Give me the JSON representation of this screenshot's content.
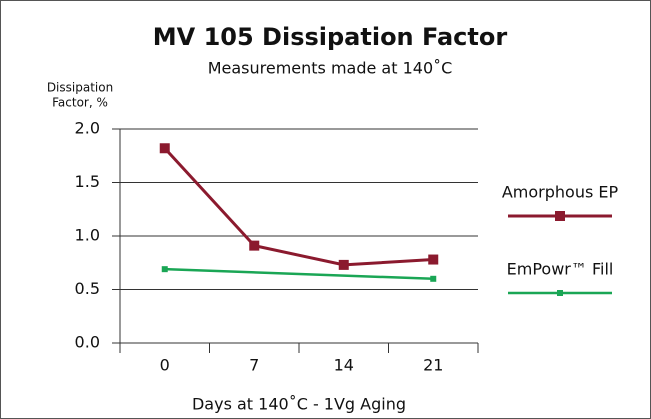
{
  "chart_data": {
    "type": "line",
    "title": "MV 105 Dissipation Factor",
    "subtitle": "Measurements made at 140˚C",
    "y_label": [
      "Dissipation",
      "Factor, %"
    ],
    "x_label": "Days at 140˚C - 1Vg Aging",
    "xlim": [
      -3.5,
      24.5
    ],
    "xticks": [
      0,
      7,
      14,
      21
    ],
    "ylim": [
      0,
      2
    ],
    "yticks": [
      {
        "value": 0,
        "label": "0.0"
      },
      0.5,
      {
        "value": 1,
        "label": "1.0"
      },
      1.5,
      {
        "value": 2,
        "label": "2.0"
      }
    ],
    "grid": true,
    "legend": "right",
    "series": [
      {
        "name": "Amorphous EP",
        "color": "#8b1a2e",
        "x": [
          0,
          7,
          14,
          21
        ],
        "values": [
          1.82,
          0.91,
          0.73,
          0.78
        ]
      },
      {
        "name": "EmPowr™ Fill",
        "color": "#1aa655",
        "x": [
          0,
          21
        ],
        "values": [
          0.69,
          0.6
        ]
      }
    ]
  }
}
